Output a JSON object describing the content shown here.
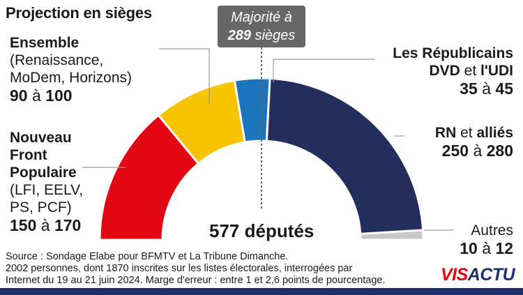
{
  "title": "Projection en sièges",
  "majority": {
    "line1": "Majorité à",
    "seats": "289",
    "unit": "sièges"
  },
  "total_label": "577 députés",
  "source_lines": [
    "Source : Sondage Elabe pour BFMTV et La Tribune Dimanche.",
    "2002 personnes, dont 1870 inscrites sur les listes électorales, interrogées par",
    "Internet du 19 au 21 juin 2024. Marge d'erreur : entre 1 et 2,6 points de pourcentage."
  ],
  "logo": {
    "part1": "VIS",
    "part2": "ACTU"
  },
  "labels": {
    "nfp": {
      "l1": "Nouveau",
      "l2": "Front",
      "l3": "Populaire",
      "l4": "(LFI, EELV,",
      "l5": "PS, PCF)",
      "min": "150",
      "sep": "à",
      "max": "170"
    },
    "ens": {
      "l1": "Ensemble",
      "l2": "(Renaissance,",
      "l3": "MoDem, Horizons)",
      "min": "90",
      "sep": "à",
      "max": "100"
    },
    "lr": {
      "l1a": "Les Républicains",
      "l2a": "DVD",
      "l2b": "et",
      "l2c": "l'UDI",
      "min": "35",
      "sep": "à",
      "max": "45"
    },
    "rn": {
      "l1a": "RN",
      "l1b": "et",
      "l1c": "alliés",
      "min": "250",
      "sep": "à",
      "max": "280"
    },
    "aut": {
      "l1": "Autres",
      "min": "10",
      "sep": "à",
      "max": "12"
    }
  },
  "chart_data": {
    "type": "pie",
    "subtype": "half-donut",
    "title": "Projection en sièges",
    "total": 577,
    "majority": 289,
    "categories": [
      "Nouveau Front Populaire",
      "Ensemble",
      "Les Républicains, DVD et l'UDI",
      "RN et alliés",
      "Autres"
    ],
    "ranges": [
      [
        150,
        170
      ],
      [
        90,
        100
      ],
      [
        35,
        45
      ],
      [
        250,
        280
      ],
      [
        10,
        12
      ]
    ],
    "values": [
      160,
      95,
      40,
      265,
      11
    ],
    "colors": [
      "#e30613",
      "#f6c400",
      "#1b75bc",
      "#242e5c",
      "#c8c8c8"
    ]
  }
}
